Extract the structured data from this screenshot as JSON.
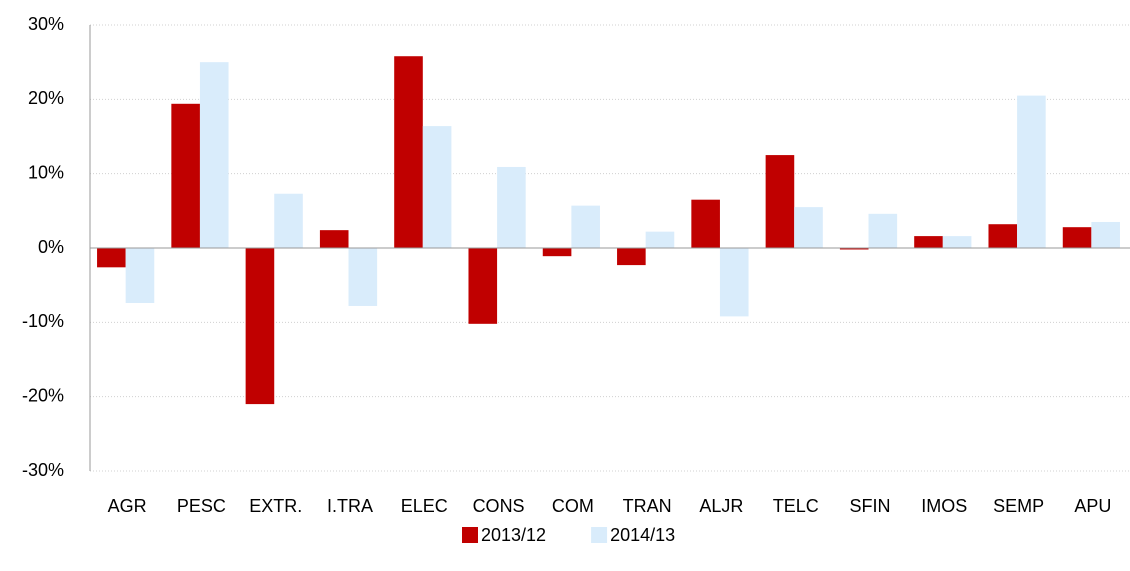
{
  "chart_data": {
    "type": "bar",
    "categories": [
      "AGR",
      "PESC",
      "EXTR.",
      "I.TRA",
      "ELEC",
      "CONS",
      "COM",
      "TRAN",
      "ALJR",
      "TELC",
      "SFIN",
      "IMOS",
      "SEMP",
      "APU"
    ],
    "series": [
      {
        "name": "2013/12",
        "color": "#c00000",
        "values": [
          -2.6,
          19.4,
          -21.0,
          2.4,
          25.8,
          -10.2,
          -1.1,
          -2.3,
          6.5,
          12.5,
          -0.2,
          1.6,
          3.2,
          2.8
        ]
      },
      {
        "name": "2014/13",
        "color": "#d9ecfb",
        "values": [
          -7.4,
          25.0,
          7.3,
          -7.8,
          16.4,
          10.9,
          5.7,
          2.2,
          -9.2,
          5.5,
          4.6,
          1.6,
          20.5,
          3.5
        ]
      }
    ],
    "ylim": [
      -30,
      30
    ],
    "yticks": [
      {
        "value": -30,
        "label": "-30%"
      },
      {
        "value": -20,
        "label": "-20%"
      },
      {
        "value": -10,
        "label": "-10%"
      },
      {
        "value": 0,
        "label": "0%"
      },
      {
        "value": 10,
        "label": "10%"
      },
      {
        "value": 20,
        "label": "20%"
      },
      {
        "value": 30,
        "label": "30%"
      }
    ],
    "grid": true,
    "legend": "bottom"
  }
}
